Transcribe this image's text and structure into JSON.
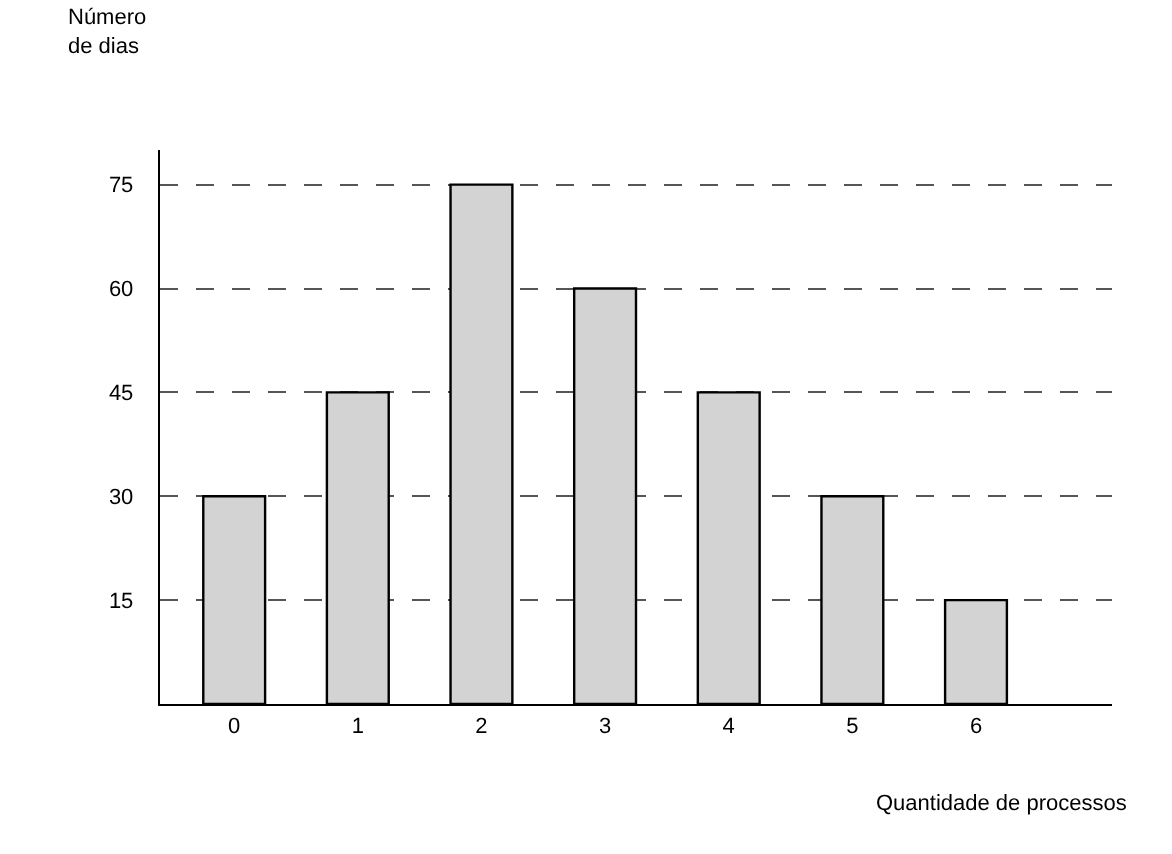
{
  "chart_data": {
    "type": "bar",
    "categories": [
      "0",
      "1",
      "2",
      "3",
      "4",
      "5",
      "6"
    ],
    "values": [
      30,
      45,
      75,
      60,
      45,
      30,
      15
    ],
    "color": "#d3d3d3",
    "ylabel": "Número\nde dias",
    "xlabel": "Quantidade de processos",
    "ylim": [
      0,
      80
    ],
    "yticks": [
      15,
      30,
      45,
      60,
      75
    ],
    "grid": "y",
    "line_style": "dashed",
    "legend": false
  }
}
